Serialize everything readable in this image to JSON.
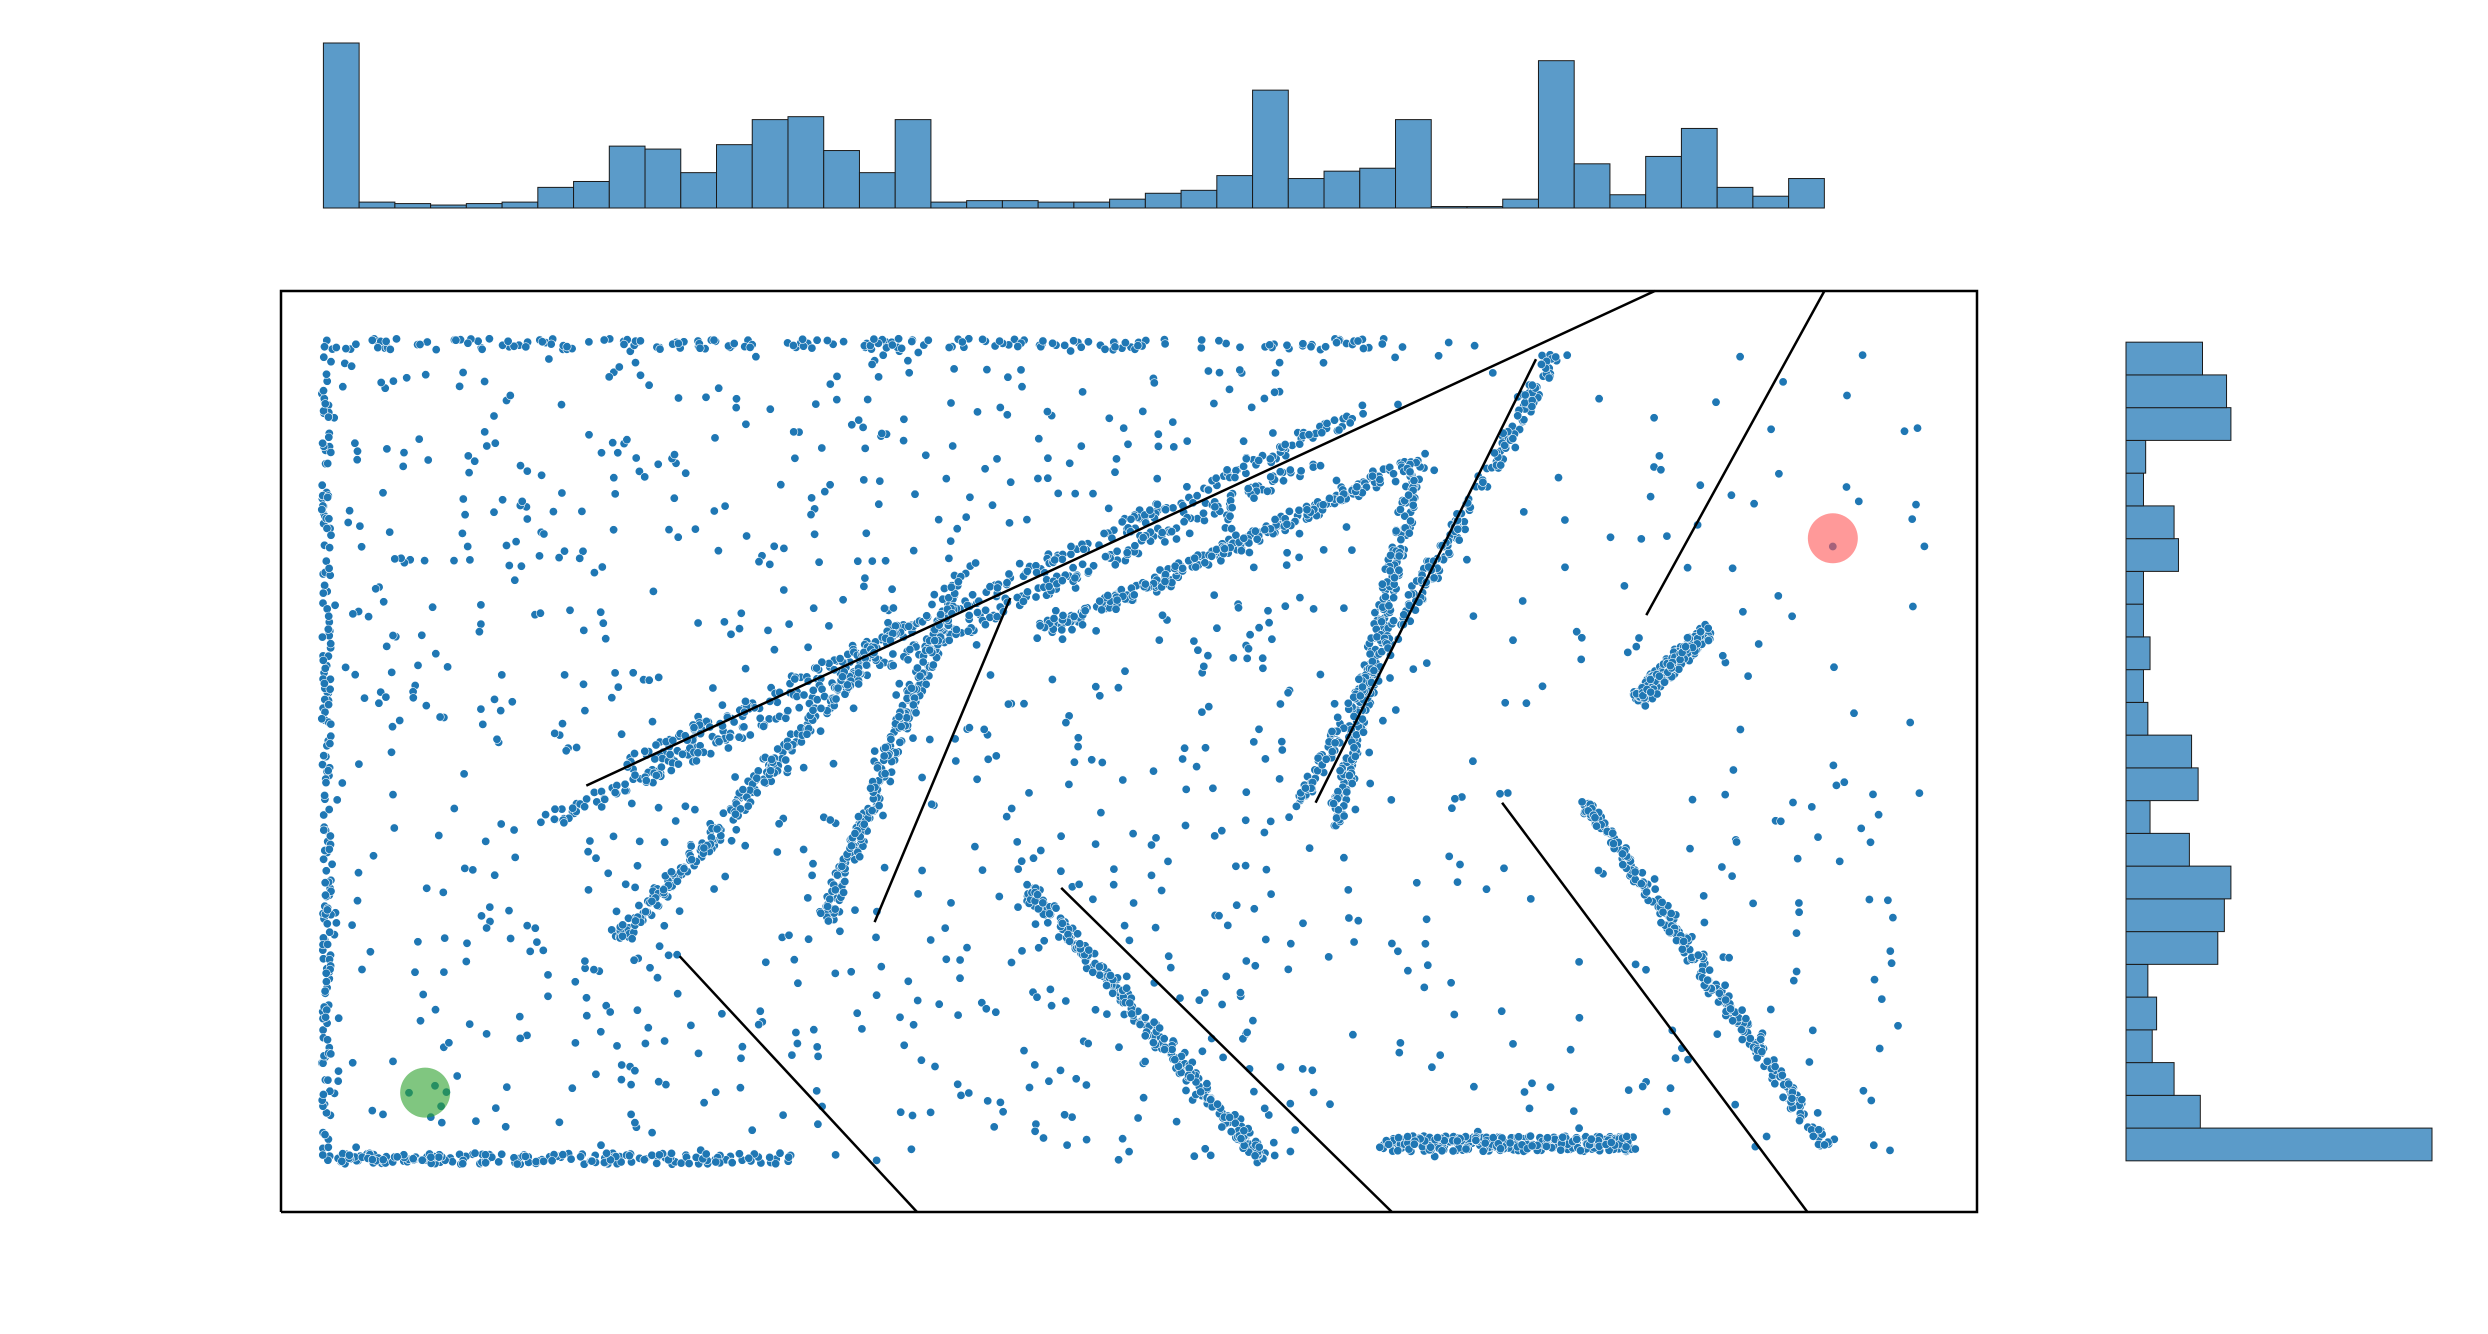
{
  "chart_data": {
    "type": "scatter",
    "title": "",
    "xlabel": "",
    "ylabel": "",
    "xlim": [
      0,
      100
    ],
    "ylim": [
      0,
      54
    ],
    "grid": false,
    "axes_visible": false,
    "colors": {
      "points": "#1f77b4",
      "hist_fill": "#5b9bc9",
      "hist_edge": "#1a1a1a",
      "walls": "#000000",
      "start_marker": "#2ca02c",
      "goal_marker": "#ff5555"
    },
    "walls": [
      [
        [
          0,
          0
        ],
        [
          100,
          0
        ],
        [
          100,
          54
        ],
        [
          0,
          54
        ],
        [
          0,
          0
        ]
      ],
      [
        [
          18,
          25
        ],
        [
          81,
          54
        ]
      ],
      [
        [
          91,
          54
        ],
        [
          80.5,
          35
        ]
      ],
      [
        [
          74,
          50
        ],
        [
          61,
          24
        ]
      ],
      [
        [
          43,
          36
        ],
        [
          35,
          17
        ]
      ],
      [
        [
          23.5,
          15
        ],
        [
          37.5,
          0
        ]
      ],
      [
        [
          46,
          19
        ],
        [
          65.5,
          0
        ]
      ],
      [
        [
          72,
          24
        ],
        [
          90,
          0
        ]
      ]
    ],
    "free_regions": [
      {
        "x": [
          2.5,
          97
        ],
        "y": [
          3,
          51
        ]
      }
    ],
    "dense_bands": [
      [
        [
          2.5,
          51
        ],
        [
          66,
          51
        ]
      ],
      [
        [
          2.5,
          3
        ],
        [
          2.5,
          51
        ]
      ],
      [
        [
          2.5,
          3
        ],
        [
          30,
          3
        ]
      ],
      [
        [
          20,
          26
        ],
        [
          64,
          47
        ]
      ],
      [
        [
          16,
          23
        ],
        [
          61,
          44
        ]
      ],
      [
        [
          20,
          16
        ],
        [
          36,
          34
        ]
      ],
      [
        [
          32,
          17
        ],
        [
          40,
          37
        ]
      ],
      [
        [
          45,
          34
        ],
        [
          67,
          44
        ]
      ],
      [
        [
          44,
          19
        ],
        [
          58,
          3
        ]
      ],
      [
        [
          62,
          22
        ],
        [
          67,
          44
        ]
      ],
      [
        [
          60,
          24
        ],
        [
          75,
          50
        ]
      ],
      [
        [
          80,
          30
        ],
        [
          84,
          34
        ]
      ],
      [
        [
          77,
          24
        ],
        [
          91,
          4
        ]
      ],
      [
        [
          65,
          4
        ],
        [
          80,
          4
        ]
      ]
    ],
    "markers": [
      {
        "name": "start",
        "x": 8.5,
        "y": 7,
        "color": "#2ca02c"
      },
      {
        "name": "goal",
        "x": 91.5,
        "y": 39.5,
        "color": "#ff5555"
      }
    ],
    "x_histogram": {
      "bins": 42,
      "range": [
        2.5,
        91
      ],
      "counts": [
        56,
        2,
        1.5,
        1,
        1.5,
        2,
        7,
        9,
        21,
        20,
        12,
        21.5,
        30,
        31,
        19.5,
        12,
        30,
        2,
        2.5,
        2.5,
        2,
        2,
        3,
        5,
        6,
        11,
        40,
        10,
        12.5,
        13.5,
        30,
        0.5,
        0.5,
        3,
        50,
        15,
        4.5,
        17.5,
        27,
        7,
        4,
        10
      ]
    },
    "y_histogram": {
      "bins": 25,
      "range": [
        3,
        51
      ],
      "counts": [
        70,
        17,
        11,
        6,
        7,
        5,
        21,
        22.5,
        24,
        14.5,
        5.5,
        16.5,
        15,
        5,
        4,
        5.5,
        4,
        4,
        12,
        11,
        4,
        4.5,
        24,
        23,
        17.5
      ]
    }
  }
}
